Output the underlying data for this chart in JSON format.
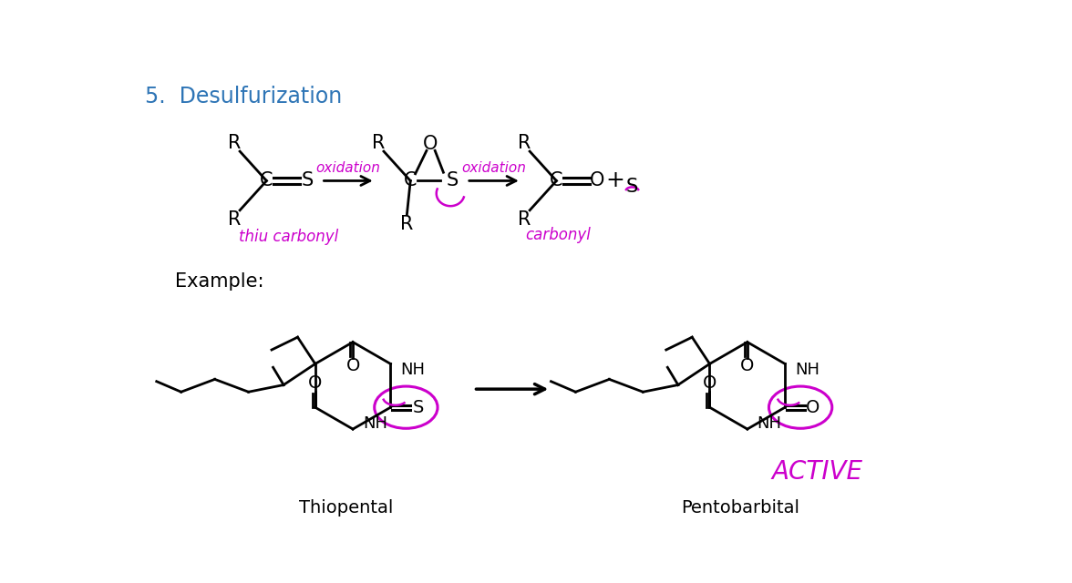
{
  "title": "5.  Desulfurization",
  "title_color": "#2E75B6",
  "title_fontsize": 17,
  "background_color": "#ffffff",
  "example_label": "Example:",
  "thiopental_label": "Thiopental",
  "pentobarbital_label": "Pentobarbital",
  "active_label": "ACTIVE",
  "thio_carbonyl_label": "thiu carbonyl",
  "carbonyl_label": "carbonyl",
  "oxidation1_label": "oxidation",
  "oxidation2_label": "oxidation",
  "handwritten_color": "#CC00CC",
  "black": "#000000",
  "white": "#ffffff"
}
